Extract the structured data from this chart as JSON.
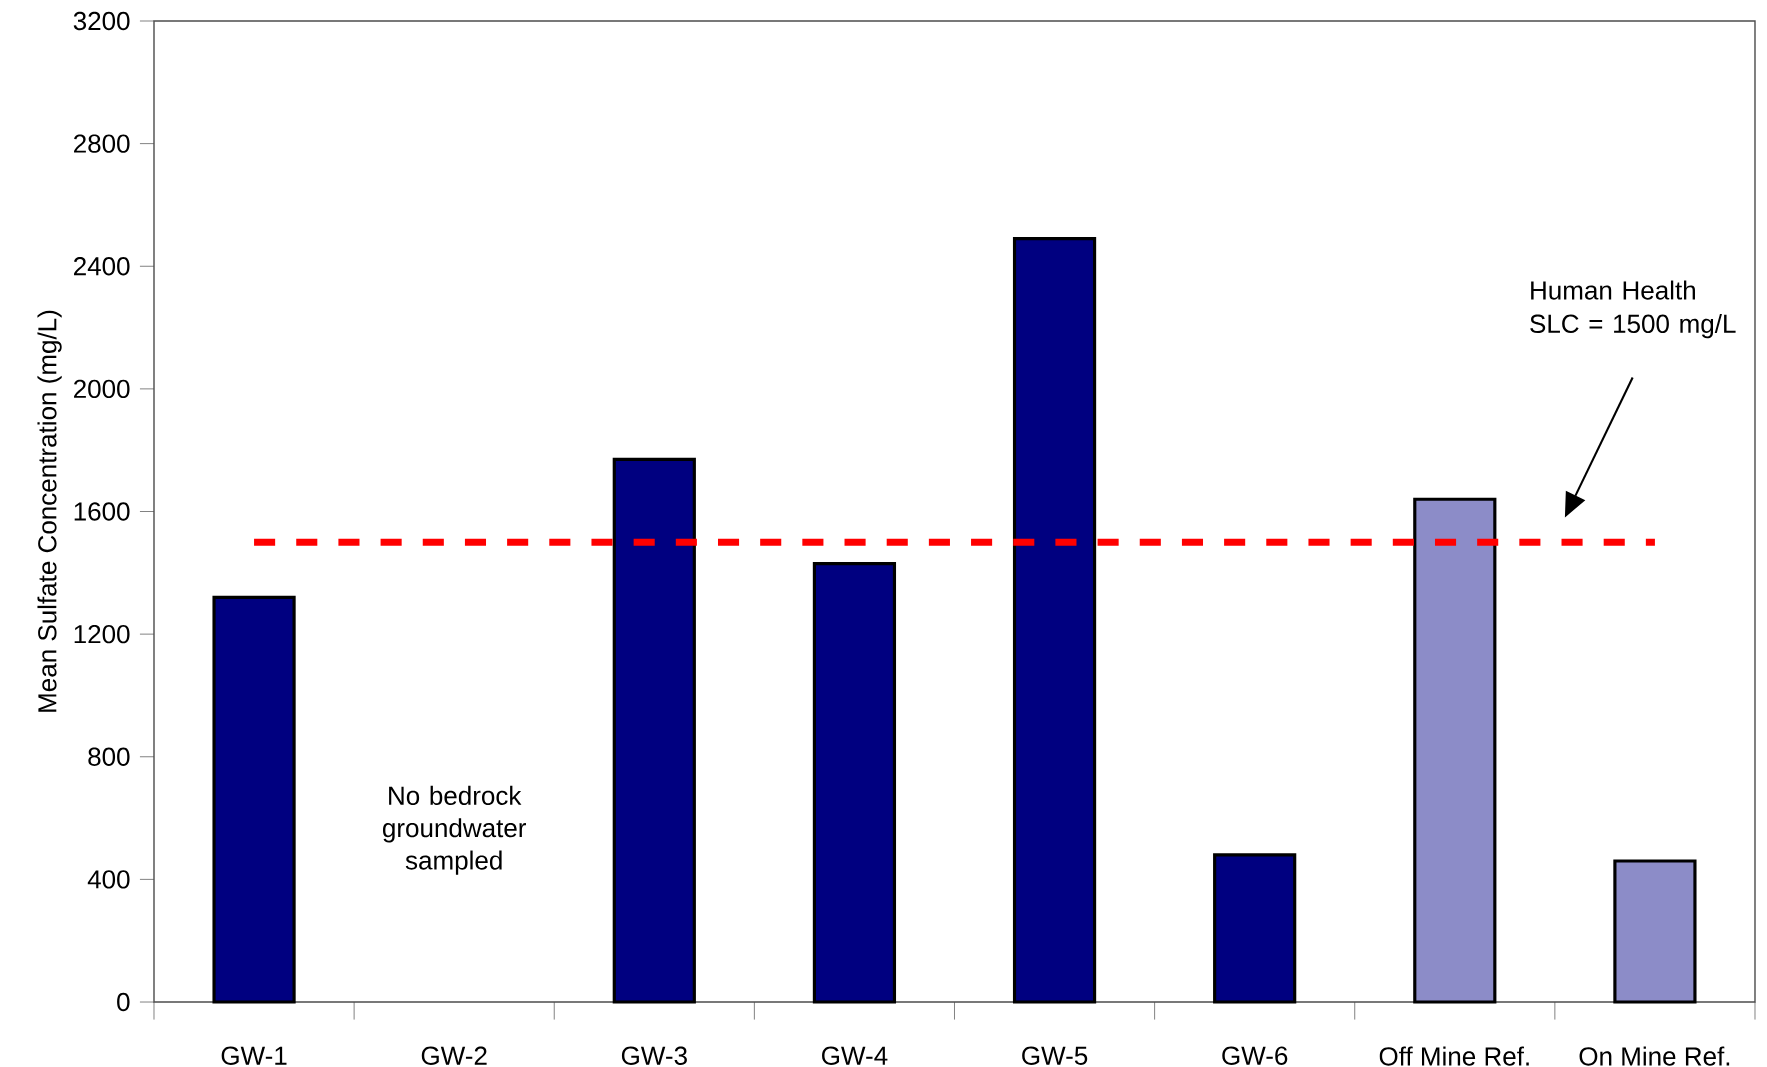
{
  "chart_data": {
    "type": "bar",
    "ylabel": "Mean Sulfate Concentration (mg/L)",
    "categories": [
      "GW-1",
      "GW-2",
      "GW-3",
      "GW-4",
      "GW-5",
      "GW-6",
      "Off Mine Ref.",
      "On Mine Ref."
    ],
    "values": [
      1320,
      null,
      1770,
      1430,
      2490,
      480,
      1640,
      460
    ],
    "colors": [
      "#000080",
      "#000080",
      "#000080",
      "#000080",
      "#000080",
      "#000080",
      "#8c8cc8",
      "#8c8cc8"
    ],
    "ylim": [
      0,
      3200
    ],
    "yticks": [
      0,
      400,
      800,
      1200,
      1600,
      2000,
      2400,
      2800,
      3200
    ],
    "grid": false,
    "ref_lines": [
      {
        "axis": "y",
        "value": 1500,
        "color": "#ff0000",
        "line_style": "dashed"
      }
    ],
    "annotations": [
      "No bedrock groundwater sampled",
      "Human Health SLC = 1500 mg/L"
    ]
  }
}
